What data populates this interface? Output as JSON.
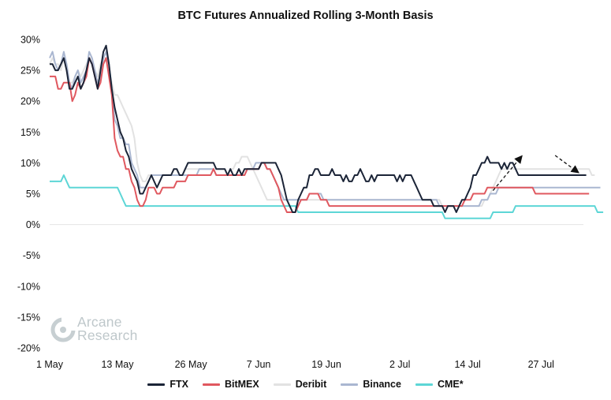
{
  "chart_data": {
    "type": "line",
    "title": "BTC Futures Annualized Rolling 3-Month Basis",
    "xlabel": "",
    "ylabel": "",
    "x_tick_labels": [
      "1 May",
      "13 May",
      "26 May",
      "7 Jun",
      "19 Jun",
      "2 Jul",
      "14 Jul",
      "27 Jul"
    ],
    "x_tick_days": [
      0,
      12,
      25,
      37,
      49,
      62,
      74,
      87
    ],
    "x_range_days": [
      0,
      94.5
    ],
    "y_tick_labels": [
      "30%",
      "25%",
      "20%",
      "15%",
      "10%",
      "5%",
      "0%",
      "-5%",
      "-10%",
      "-15%",
      "-20%"
    ],
    "y_tick_values": [
      30,
      25,
      20,
      15,
      10,
      5,
      0,
      -5,
      -10,
      -15,
      -20
    ],
    "ylim": [
      -20,
      30
    ],
    "grid": "zero line only",
    "legend_position": "bottom",
    "x_days_per_series_point": 0.5,
    "series": [
      {
        "name": "FTX",
        "color": "#1b2437",
        "values": [
          26,
          26,
          25,
          25,
          26,
          27,
          25,
          22,
          22,
          23,
          24,
          22,
          23,
          25,
          27,
          26,
          24,
          22,
          25,
          28,
          29,
          26,
          22,
          19,
          17,
          15,
          14,
          12,
          11,
          9,
          8,
          7,
          5,
          5,
          6,
          7,
          8,
          7,
          6,
          7,
          8,
          8,
          8,
          8,
          9,
          9,
          8,
          8,
          9,
          10,
          10,
          10,
          10,
          10,
          10,
          10,
          10,
          10,
          10,
          9,
          9,
          9,
          9,
          8,
          9,
          8,
          8,
          9,
          8,
          9,
          9,
          9,
          9,
          9,
          9,
          10,
          10,
          10,
          10,
          10,
          10,
          9,
          8,
          6,
          4,
          3,
          2,
          2,
          4,
          5,
          6,
          6,
          8,
          8,
          9,
          9,
          8,
          8,
          8,
          8,
          9,
          8,
          8,
          8,
          7,
          8,
          7,
          7,
          8,
          8,
          9,
          8,
          7,
          7,
          8,
          7,
          8,
          8,
          8,
          8,
          8,
          8,
          8,
          7,
          8,
          7,
          8,
          8,
          8,
          7,
          6,
          5,
          4,
          4,
          4,
          4,
          3,
          3,
          3,
          3,
          2,
          3,
          3,
          3,
          2,
          3,
          4,
          4,
          5,
          6,
          8,
          8,
          9,
          10,
          10,
          11,
          10,
          10,
          10,
          10,
          9,
          10,
          9,
          10,
          10,
          9,
          8,
          8,
          8,
          8,
          8,
          8,
          8,
          8,
          8,
          8,
          8,
          8,
          8,
          8,
          8,
          8,
          8,
          8,
          8,
          8,
          8,
          8,
          8,
          8,
          8
        ]
      },
      {
        "name": "BitMEX",
        "color": "#e0585f",
        "values": [
          24,
          24,
          24,
          22,
          22,
          23,
          23,
          23,
          20,
          21,
          23,
          22,
          23,
          24,
          27,
          26,
          24,
          22,
          23,
          26,
          27,
          24,
          21,
          14,
          12,
          11,
          11,
          9,
          9,
          7,
          6,
          4,
          3,
          3,
          4,
          6,
          6,
          6,
          5,
          5,
          6,
          6,
          6,
          6,
          6,
          7,
          7,
          7,
          7,
          8,
          8,
          8,
          8,
          8,
          8,
          8,
          8,
          8,
          9,
          8,
          8,
          8,
          8,
          8,
          8,
          8,
          8,
          8,
          8,
          8,
          9,
          9,
          9,
          9,
          9,
          10,
          10,
          9,
          9,
          8,
          7,
          6,
          4,
          3,
          2,
          2,
          2,
          2,
          3,
          4,
          4,
          4,
          5,
          5,
          5,
          5,
          4,
          4,
          4,
          3,
          3,
          3,
          3,
          3,
          3,
          3,
          3,
          3,
          3,
          3,
          3,
          3,
          3,
          3,
          3,
          3,
          3,
          3,
          3,
          3,
          3,
          3,
          3,
          3,
          3,
          3,
          3,
          3,
          3,
          3,
          3,
          3,
          3,
          3,
          3,
          3,
          3,
          3,
          3,
          3,
          3,
          3,
          3,
          3,
          3,
          3,
          3,
          4,
          4,
          4,
          5,
          5,
          5,
          5,
          5,
          6,
          6,
          6,
          6,
          6,
          6,
          6,
          6,
          6,
          6,
          6,
          6,
          6,
          6,
          6,
          6,
          6,
          5,
          5,
          5,
          5,
          5,
          5,
          5,
          5,
          5,
          5,
          5,
          5,
          5,
          5,
          5,
          5,
          5,
          5,
          5,
          5
        ]
      },
      {
        "name": "Deribit",
        "color": "#e2e2e2",
        "values": [
          26,
          27,
          26,
          26,
          25,
          27,
          25,
          23,
          23,
          24,
          25,
          24,
          25,
          26,
          27,
          27,
          25,
          24,
          26,
          27,
          27,
          25,
          23,
          21,
          21,
          20,
          19,
          18,
          17,
          16,
          14,
          10,
          8,
          7,
          7,
          8,
          8,
          8,
          8,
          8,
          8,
          8,
          8,
          8,
          9,
          9,
          8,
          8,
          9,
          9,
          9,
          9,
          9,
          9,
          9,
          9,
          9,
          9,
          9,
          8,
          8,
          8,
          8,
          8,
          9,
          9,
          10,
          10,
          11,
          11,
          11,
          10,
          9,
          8,
          7,
          6,
          5,
          4,
          4,
          4,
          4,
          4,
          4,
          4,
          4,
          4,
          4,
          4,
          4,
          4,
          4,
          4,
          4,
          4,
          4,
          4,
          4,
          4,
          4,
          4,
          4,
          4,
          4,
          4,
          4,
          4,
          4,
          4,
          4,
          4,
          4,
          4,
          4,
          4,
          4,
          4,
          4,
          4,
          4,
          4,
          4,
          4,
          4,
          4,
          4,
          4,
          4,
          4,
          4,
          4,
          4,
          4,
          4,
          4,
          4,
          4,
          4,
          4,
          4,
          3,
          3,
          3,
          3,
          3,
          3,
          3,
          3,
          3,
          3,
          3,
          3,
          3,
          3,
          3,
          4,
          4,
          5,
          6,
          7,
          8,
          9,
          9,
          9,
          9,
          9,
          9,
          9,
          9,
          9,
          9,
          9,
          9,
          9,
          9,
          9,
          9,
          9,
          9,
          9,
          9,
          9,
          9,
          9,
          9,
          9,
          9,
          9,
          9,
          9,
          9,
          9,
          9,
          8,
          8
        ]
      },
      {
        "name": "Binance",
        "color": "#aab7d1",
        "values": [
          27,
          28,
          26,
          25,
          26,
          28,
          26,
          23,
          22,
          24,
          25,
          23,
          24,
          25,
          28,
          27,
          25,
          23,
          24,
          27,
          28,
          26,
          22,
          17,
          16,
          14,
          14,
          13,
          13,
          10,
          9,
          8,
          6,
          6,
          6,
          7,
          8,
          8,
          8,
          8,
          8,
          8,
          8,
          8,
          8,
          8,
          8,
          8,
          8,
          8,
          8,
          8,
          8,
          9,
          9,
          9,
          9,
          9,
          9,
          8,
          8,
          8,
          8,
          8,
          8,
          8,
          8,
          8,
          8,
          8,
          9,
          9,
          9,
          10,
          10,
          10,
          10,
          9,
          9,
          8,
          7,
          6,
          5,
          4,
          4,
          4,
          4,
          4,
          4,
          4,
          4,
          4,
          5,
          5,
          5,
          5,
          5,
          4,
          4,
          4,
          4,
          4,
          4,
          4,
          4,
          4,
          4,
          4,
          4,
          4,
          4,
          4,
          4,
          4,
          4,
          4,
          4,
          4,
          4,
          4,
          4,
          4,
          4,
          4,
          4,
          4,
          4,
          4,
          4,
          4,
          4,
          4,
          4,
          4,
          4,
          4,
          4,
          4,
          3,
          3,
          3,
          3,
          3,
          3,
          3,
          3,
          3,
          3,
          3,
          3,
          3,
          3,
          3,
          4,
          4,
          4,
          5,
          5,
          5,
          6,
          6,
          6,
          6,
          6,
          6,
          6,
          6,
          6,
          6,
          6,
          6,
          6,
          6,
          6,
          6,
          6,
          6,
          6,
          6,
          6,
          6,
          6,
          6,
          6,
          6,
          6,
          6,
          6,
          6,
          6,
          6,
          6,
          6,
          6,
          6,
          6
        ]
      },
      {
        "name": "CME*",
        "color": "#5dd6d6",
        "values": [
          7,
          7,
          7,
          7,
          7,
          8,
          7,
          6,
          6,
          6,
          6,
          6,
          6,
          6,
          6,
          6,
          6,
          6,
          6,
          6,
          6,
          6,
          6,
          6,
          6,
          5,
          4,
          3,
          3,
          3,
          3,
          3,
          3,
          3,
          3,
          3,
          3,
          3,
          3,
          3,
          3,
          3,
          3,
          3,
          3,
          3,
          3,
          3,
          3,
          3,
          3,
          3,
          3,
          3,
          3,
          3,
          3,
          3,
          3,
          3,
          3,
          3,
          3,
          3,
          3,
          3,
          3,
          3,
          3,
          3,
          3,
          3,
          3,
          3,
          3,
          3,
          3,
          3,
          3,
          3,
          3,
          3,
          3,
          3,
          3,
          3,
          3,
          3,
          2,
          2,
          2,
          2,
          2,
          2,
          2,
          2,
          2,
          2,
          2,
          2,
          2,
          2,
          2,
          2,
          2,
          2,
          2,
          2,
          2,
          2,
          2,
          2,
          2,
          2,
          2,
          2,
          2,
          2,
          2,
          2,
          2,
          2,
          2,
          2,
          2,
          2,
          2,
          2,
          2,
          2,
          2,
          2,
          2,
          2,
          2,
          2,
          2,
          2,
          2,
          2,
          1,
          1,
          1,
          1,
          1,
          1,
          1,
          1,
          1,
          1,
          1,
          1,
          1,
          1,
          1,
          1,
          1,
          2,
          2,
          2,
          2,
          2,
          2,
          2,
          2,
          3,
          3,
          3,
          3,
          3,
          3,
          3,
          3,
          3,
          3,
          3,
          3,
          3,
          3,
          3,
          3,
          3,
          3,
          3,
          3,
          3,
          3,
          3,
          3,
          3,
          3,
          3,
          3,
          3,
          2,
          2,
          2
        ]
      }
    ],
    "annotations": {
      "watermark": "Arcane Research",
      "arrows": [
        {
          "from_day": 78.5,
          "from_value": 5.5,
          "to_day": 83.5,
          "to_value": 11
        },
        {
          "from_day": 89.5,
          "from_value": 11.2,
          "to_day": 93.5,
          "to_value": 8.5
        }
      ]
    }
  }
}
